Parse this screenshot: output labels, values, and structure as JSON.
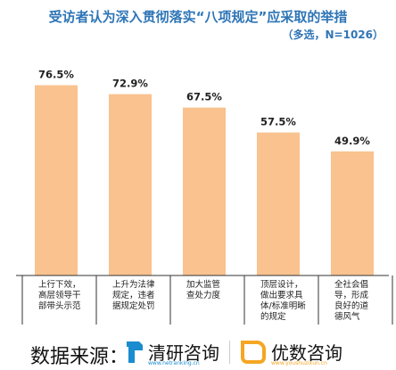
{
  "title": "受访者认为深入贯彻落实“八项规定”应采取的举措",
  "subtitle": "（多选，N=1026）",
  "chart_data": {
    "type": "bar",
    "categories": [
      [
        "上行下效，",
        "高层领导干",
        "部带头示范"
      ],
      [
        "上升为法律",
        "规定，违者",
        "据规定处罚"
      ],
      [
        "加大监管",
        "查处力度"
      ],
      [
        "顶层设计，",
        "做出要求具",
        "体/标准明晰",
        "的规定"
      ],
      [
        "全社会倡",
        "导，形成",
        "良好的道",
        "德风气"
      ]
    ],
    "values": [
      76.5,
      72.9,
      67.5,
      57.5,
      49.9
    ],
    "value_labels": [
      "76.5%",
      "72.9%",
      "67.5%",
      "57.5%",
      "49.9%"
    ],
    "bar_color": "#f9c28f",
    "ylim": [
      0,
      100
    ]
  },
  "footer": {
    "source_label": "数据来源：",
    "logo1_name": "清研咨询",
    "logo1_url": "www.netranking.cn",
    "logo2_name": "优数咨询",
    "logo2_url": "www.youshuzixun.cn",
    "logo1_color": "#1a8ccf",
    "logo2_color": "#f5a623"
  }
}
